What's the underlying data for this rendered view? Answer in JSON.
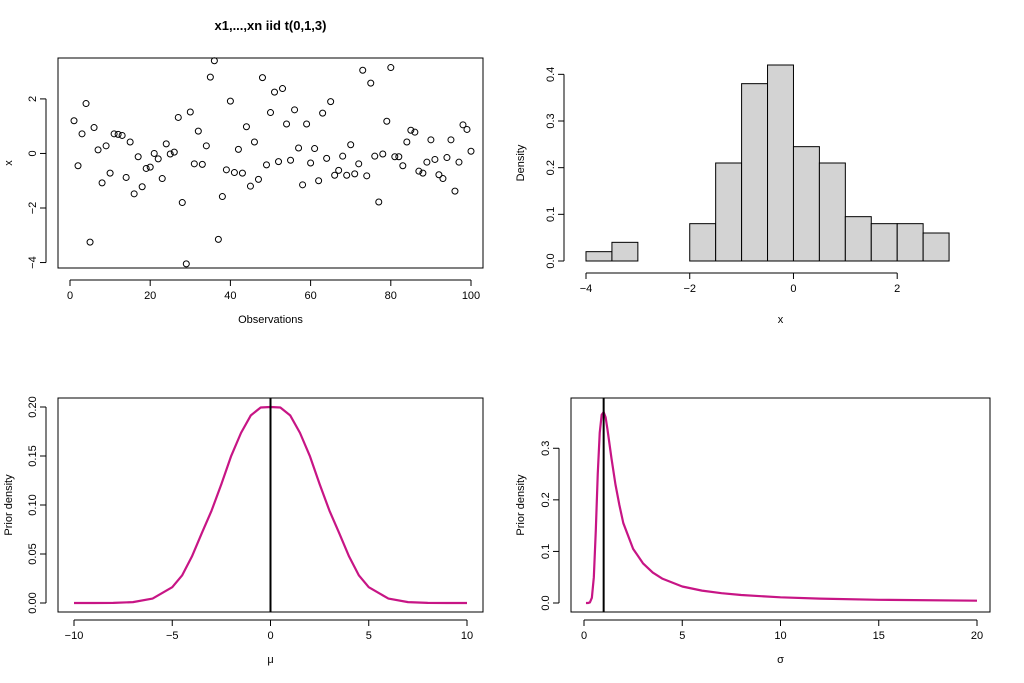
{
  "chart_data": [
    {
      "type": "scatter",
      "title": "x1,...,xn iid t(0,1,3)",
      "xlabel": "Observations",
      "ylabel": "x",
      "xlim": [
        0,
        100
      ],
      "ylim": [
        -4.2,
        3.5
      ],
      "xticks": [
        0,
        20,
        40,
        60,
        80,
        100
      ],
      "yticks": [
        -4,
        -2,
        0,
        2
      ],
      "tick_labels_x": [
        "0",
        "20",
        "40",
        "60",
        "80",
        "100"
      ],
      "tick_labels_y": [
        "−4",
        "−2",
        "0",
        "2"
      ],
      "marker": "open-circle",
      "x": [
        1,
        2,
        3,
        4,
        5,
        6,
        7,
        8,
        9,
        10,
        11,
        12,
        13,
        14,
        15,
        16,
        17,
        18,
        19,
        20,
        21,
        22,
        23,
        24,
        25,
        26,
        27,
        28,
        29,
        30,
        31,
        32,
        33,
        34,
        35,
        36,
        37,
        38,
        39,
        40,
        41,
        42,
        43,
        44,
        45,
        46,
        47,
        48,
        49,
        50,
        51,
        52,
        53,
        54,
        55,
        56,
        57,
        58,
        59,
        60,
        61,
        62,
        63,
        64,
        65,
        66,
        67,
        68,
        69,
        70,
        71,
        72,
        73,
        74,
        75,
        76,
        77,
        78,
        79,
        80,
        81,
        82,
        83,
        84,
        85,
        86,
        87,
        88,
        89,
        90,
        91,
        92,
        93,
        94,
        95,
        96,
        97,
        98,
        99,
        100
      ],
      "y": [
        1.2,
        -0.45,
        0.72,
        1.83,
        -3.25,
        0.95,
        0.13,
        -1.08,
        0.28,
        -0.72,
        0.72,
        0.7,
        0.66,
        -0.88,
        0.42,
        -1.48,
        -0.12,
        -1.22,
        -0.55,
        -0.5,
        0.0,
        -0.2,
        -0.92,
        0.35,
        -0.02,
        0.05,
        1.32,
        -1.8,
        -4.05,
        1.52,
        -0.38,
        0.82,
        -0.4,
        0.28,
        2.8,
        3.4,
        -3.15,
        -1.58,
        -0.6,
        1.92,
        -0.7,
        0.15,
        -0.72,
        0.98,
        -1.2,
        0.42,
        -0.95,
        2.78,
        -0.42,
        1.5,
        2.25,
        -0.3,
        2.38,
        1.08,
        -0.25,
        1.6,
        0.2,
        -1.15,
        1.08,
        -0.35,
        0.18,
        -1.0,
        1.48,
        -0.18,
        1.9,
        -0.8,
        -0.62,
        -0.1,
        -0.8,
        0.32,
        -0.75,
        -0.38,
        3.05,
        -0.82,
        2.58,
        -0.1,
        -1.78,
        -0.02,
        1.18,
        3.15,
        -0.12,
        -0.12,
        -0.45,
        0.42,
        0.85,
        0.78,
        -0.65,
        -0.72,
        -0.32,
        0.5,
        -0.22,
        -0.78,
        -0.92,
        -0.15,
        0.5,
        -1.38,
        -0.32,
        1.05,
        0.88,
        0.08
      ]
    },
    {
      "type": "bar",
      "subtype": "histogram",
      "title": "",
      "xlabel": "x",
      "ylabel": "Density",
      "xlim": [
        -4,
        3.5
      ],
      "ylim": [
        0,
        0.42
      ],
      "xticks": [
        -4,
        -2,
        0,
        2
      ],
      "yticks": [
        0.0,
        0.1,
        0.2,
        0.3,
        0.4
      ],
      "tick_labels_x": [
        "−4",
        "−2",
        "0",
        "2"
      ],
      "tick_labels_y": [
        "0.0",
        "0.1",
        "0.2",
        "0.3",
        "0.4"
      ],
      "fill": "#d3d3d3",
      "bin_edges": [
        -4.0,
        -3.5,
        -3.0,
        -2.5,
        -2.0,
        -1.5,
        -1.0,
        -0.5,
        0.0,
        0.5,
        1.0,
        1.5,
        2.0,
        2.5,
        3.0,
        3.5
      ],
      "values": [
        0.02,
        0.04,
        0.0,
        0.0,
        0.08,
        0.21,
        0.38,
        0.42,
        0.245,
        0.21,
        0.095,
        0.08,
        0.08,
        0.06,
        0.0
      ]
    },
    {
      "type": "line",
      "title": "",
      "xlabel": "μ",
      "ylabel": "Prior density",
      "xlim": [
        -10,
        10
      ],
      "ylim": [
        0,
        0.2
      ],
      "xticks": [
        -10,
        -5,
        0,
        5,
        10
      ],
      "yticks": [
        0.0,
        0.05,
        0.1,
        0.15,
        0.2
      ],
      "tick_labels_x": [
        "−10",
        "−5",
        "0",
        "5",
        "10"
      ],
      "tick_labels_y": [
        "0.00",
        "0.05",
        "0.10",
        "0.15",
        "0.20"
      ],
      "line_color": "#c71585",
      "vline": 0,
      "vline_color": "#000000",
      "series": [
        {
          "x": [
            -10,
            -9,
            -8,
            -7,
            -6,
            -5,
            -4.5,
            -4,
            -3.5,
            -3,
            -2.5,
            -2,
            -1.5,
            -1,
            -0.5,
            0,
            0.5,
            1,
            1.5,
            2,
            2.5,
            3,
            3.5,
            4,
            4.5,
            5,
            6,
            7,
            8,
            9,
            10
          ],
          "values": [
            0.0,
            0.0,
            0.0001,
            0.0009,
            0.0045,
            0.0161,
            0.0281,
            0.0474,
            0.0711,
            0.0942,
            0.1213,
            0.1501,
            0.1736,
            0.1915,
            0.1995,
            0.2,
            0.1995,
            0.1915,
            0.1736,
            0.1501,
            0.1213,
            0.0942,
            0.0711,
            0.0474,
            0.0281,
            0.0161,
            0.0045,
            0.0009,
            0.0001,
            0.0,
            0.0
          ]
        }
      ]
    },
    {
      "type": "line",
      "title": "",
      "xlabel": "σ",
      "ylabel": "Prior density",
      "xlim": [
        0,
        20
      ],
      "ylim": [
        0,
        0.38
      ],
      "xticks": [
        0,
        5,
        10,
        15,
        20
      ],
      "yticks": [
        0.0,
        0.1,
        0.2,
        0.3
      ],
      "tick_labels_x": [
        "0",
        "5",
        "10",
        "15",
        "20"
      ],
      "tick_labels_y": [
        "0.0",
        "0.1",
        "0.2",
        "0.3"
      ],
      "line_color": "#c71585",
      "vline": 1,
      "vline_color": "#000000",
      "series": [
        {
          "x": [
            0.1,
            0.2,
            0.3,
            0.4,
            0.5,
            0.6,
            0.7,
            0.8,
            0.9,
            1.0,
            1.1,
            1.2,
            1.4,
            1.6,
            1.8,
            2.0,
            2.5,
            3.0,
            3.5,
            4.0,
            5.0,
            6.0,
            7.0,
            8.0,
            10.0,
            12.0,
            15.0,
            20.0
          ],
          "values": [
            0.0,
            0.0,
            0.001,
            0.01,
            0.05,
            0.14,
            0.25,
            0.33,
            0.365,
            0.37,
            0.36,
            0.335,
            0.28,
            0.23,
            0.19,
            0.155,
            0.105,
            0.077,
            0.059,
            0.047,
            0.032,
            0.024,
            0.019,
            0.0155,
            0.011,
            0.0085,
            0.0062,
            0.0045
          ]
        }
      ]
    }
  ]
}
